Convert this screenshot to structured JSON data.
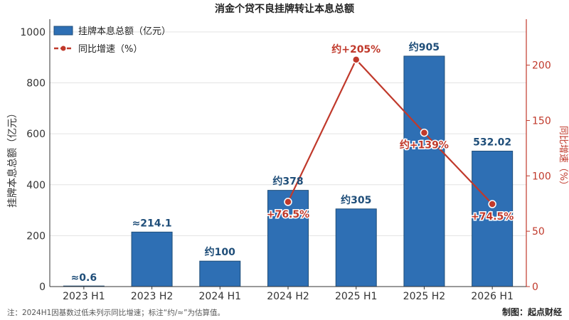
{
  "chart_data": {
    "type": "bar",
    "title": "消金个贷不良挂牌转让本息总额",
    "categories": [
      "2023 H1",
      "2023 H2",
      "2024 H1",
      "2024 H2",
      "2025 H1",
      "2025 H2",
      "2026 H1"
    ],
    "series": [
      {
        "name": "挂牌本息总额（亿元）",
        "type": "bar",
        "axis": "left",
        "values": [
          0.6,
          214.1,
          100,
          378,
          305,
          905,
          532.02
        ],
        "labels": [
          "≈0.6",
          "≈214.1",
          "约100",
          "约378",
          "约305",
          "约905",
          "532.02"
        ],
        "color": "#2e6fb4"
      },
      {
        "name": "同比增速（%）",
        "type": "line",
        "axis": "right",
        "values": [
          null,
          null,
          null,
          76.5,
          205,
          139,
          74.5
        ],
        "labels": [
          "",
          "",
          "",
          "+76.5%",
          "约+205%",
          "约+139%",
          "+74.5%"
        ],
        "color": "#c0392b"
      }
    ],
    "ylabel": "挂牌本息总额（亿元）",
    "ylabel_right": "同比增速（%）",
    "ylim": [
      0,
      1050
    ],
    "ylim_right": [
      0,
      241.5
    ],
    "yticks": [
      0,
      200,
      400,
      600,
      800,
      1000
    ],
    "yticks_right": [
      0,
      50,
      100,
      150,
      200
    ],
    "grid": true,
    "legend": "top-left"
  },
  "footnote": "注：2024H1因基数过低未列示同比增速；标注“约/≈”为估算值。",
  "credit": "制图：起点财经"
}
